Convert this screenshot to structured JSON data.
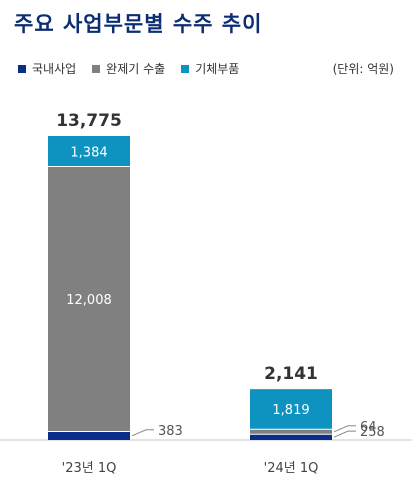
{
  "chart_data": {
    "type": "bar",
    "stacked": true,
    "title": "주요 사업부문별 수주 추이",
    "unit": "(단위: 억원)",
    "categories": [
      "'23년 1Q",
      "'24년 1Q"
    ],
    "totals": [
      "13,775",
      "2,141"
    ],
    "series": [
      {
        "name": "국내사업",
        "color": "#0a2d8c",
        "values": [
          383,
          258
        ],
        "labels": [
          "383",
          "258"
        ]
      },
      {
        "name": "완제기 수출",
        "color": "#808080",
        "values": [
          12008,
          64
        ],
        "labels": [
          "12,008",
          "64"
        ]
      },
      {
        "name": "기체부품",
        "color": "#0e93c0",
        "values": [
          1384,
          1819
        ],
        "labels": [
          "1,384",
          "1,819"
        ]
      }
    ],
    "legend_position": "top-left",
    "grid": false
  }
}
